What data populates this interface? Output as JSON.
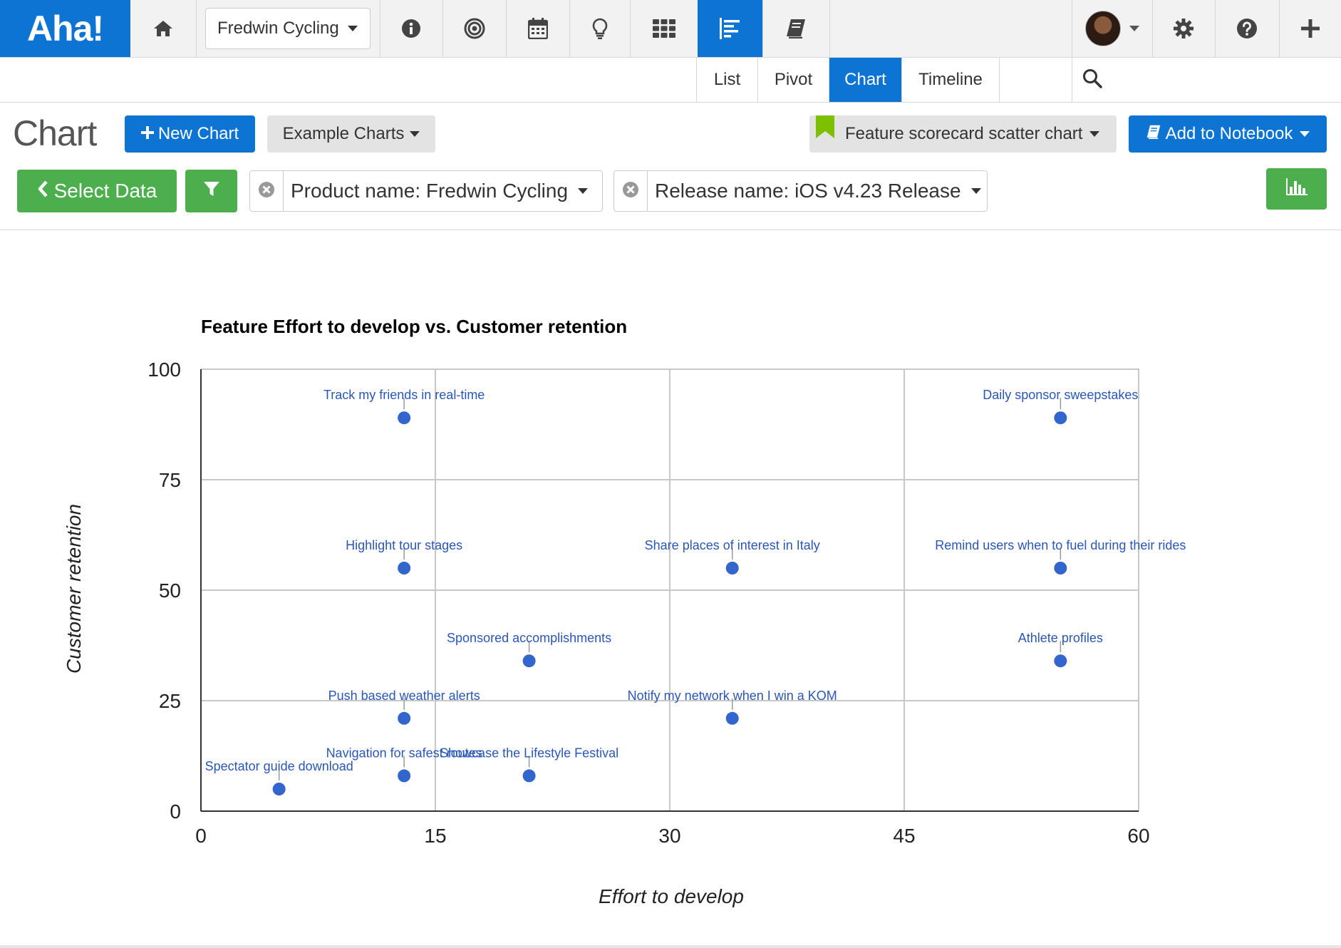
{
  "app": {
    "logo": "Aha!",
    "product": "Fredwin Cycling"
  },
  "nav_icons": [
    "home-icon",
    "info-icon",
    "target-icon",
    "calendar-icon",
    "lightbulb-icon",
    "grid-icon",
    "roadmap-icon",
    "notebook-icon",
    "settings-icon",
    "help-icon",
    "plus-icon"
  ],
  "subnav": {
    "tabs": [
      "List",
      "Pivot",
      "Chart",
      "Timeline"
    ],
    "active": "Chart"
  },
  "toolbar": {
    "title": "Chart",
    "new_chart": "New Chart",
    "example_charts": "Example Charts",
    "saved_view": "Feature scorecard scatter chart",
    "add_to_notebook": "Add to Notebook",
    "select_data": "Select Data",
    "filter_product": "Product name: Fredwin Cycling",
    "filter_release": "Release name: iOS v4.23 Release"
  },
  "colors": {
    "brand_blue": "#0e74d4",
    "green": "#4cae4c",
    "point": "#3366cc",
    "bookmark": "#7dc000"
  },
  "chart_data": {
    "type": "scatter",
    "title": "Feature Effort to develop vs. Customer retention",
    "xlabel": "Effort to develop",
    "ylabel": "Customer retention",
    "xlim": [
      0,
      60
    ],
    "ylim": [
      0,
      100
    ],
    "xticks": [
      "0",
      "15",
      "30",
      "45",
      "60"
    ],
    "yticks": [
      "0",
      "25",
      "50",
      "75",
      "100"
    ],
    "grid": true,
    "points": [
      {
        "label": "Track my friends in real-time",
        "x": 13,
        "y": 89
      },
      {
        "label": "Daily sponsor sweepstakes",
        "x": 55,
        "y": 89
      },
      {
        "label": "Highlight tour stages",
        "x": 13,
        "y": 55
      },
      {
        "label": "Share places of interest in Italy",
        "x": 34,
        "y": 55
      },
      {
        "label": "Remind users when to fuel during their rides",
        "x": 55,
        "y": 55
      },
      {
        "label": "Sponsored accomplishments",
        "x": 21,
        "y": 34
      },
      {
        "label": "Athlete profiles",
        "x": 55,
        "y": 34
      },
      {
        "label": "Push based weather alerts",
        "x": 13,
        "y": 21
      },
      {
        "label": "Notify my network when I win a KOM",
        "x": 34,
        "y": 21
      },
      {
        "label": "Navigation for safest routes",
        "x": 13,
        "y": 8
      },
      {
        "label": "Showcase the Lifestyle Festival",
        "x": 21,
        "y": 8
      },
      {
        "label": "Spectator guide download",
        "x": 5,
        "y": 5
      }
    ]
  }
}
